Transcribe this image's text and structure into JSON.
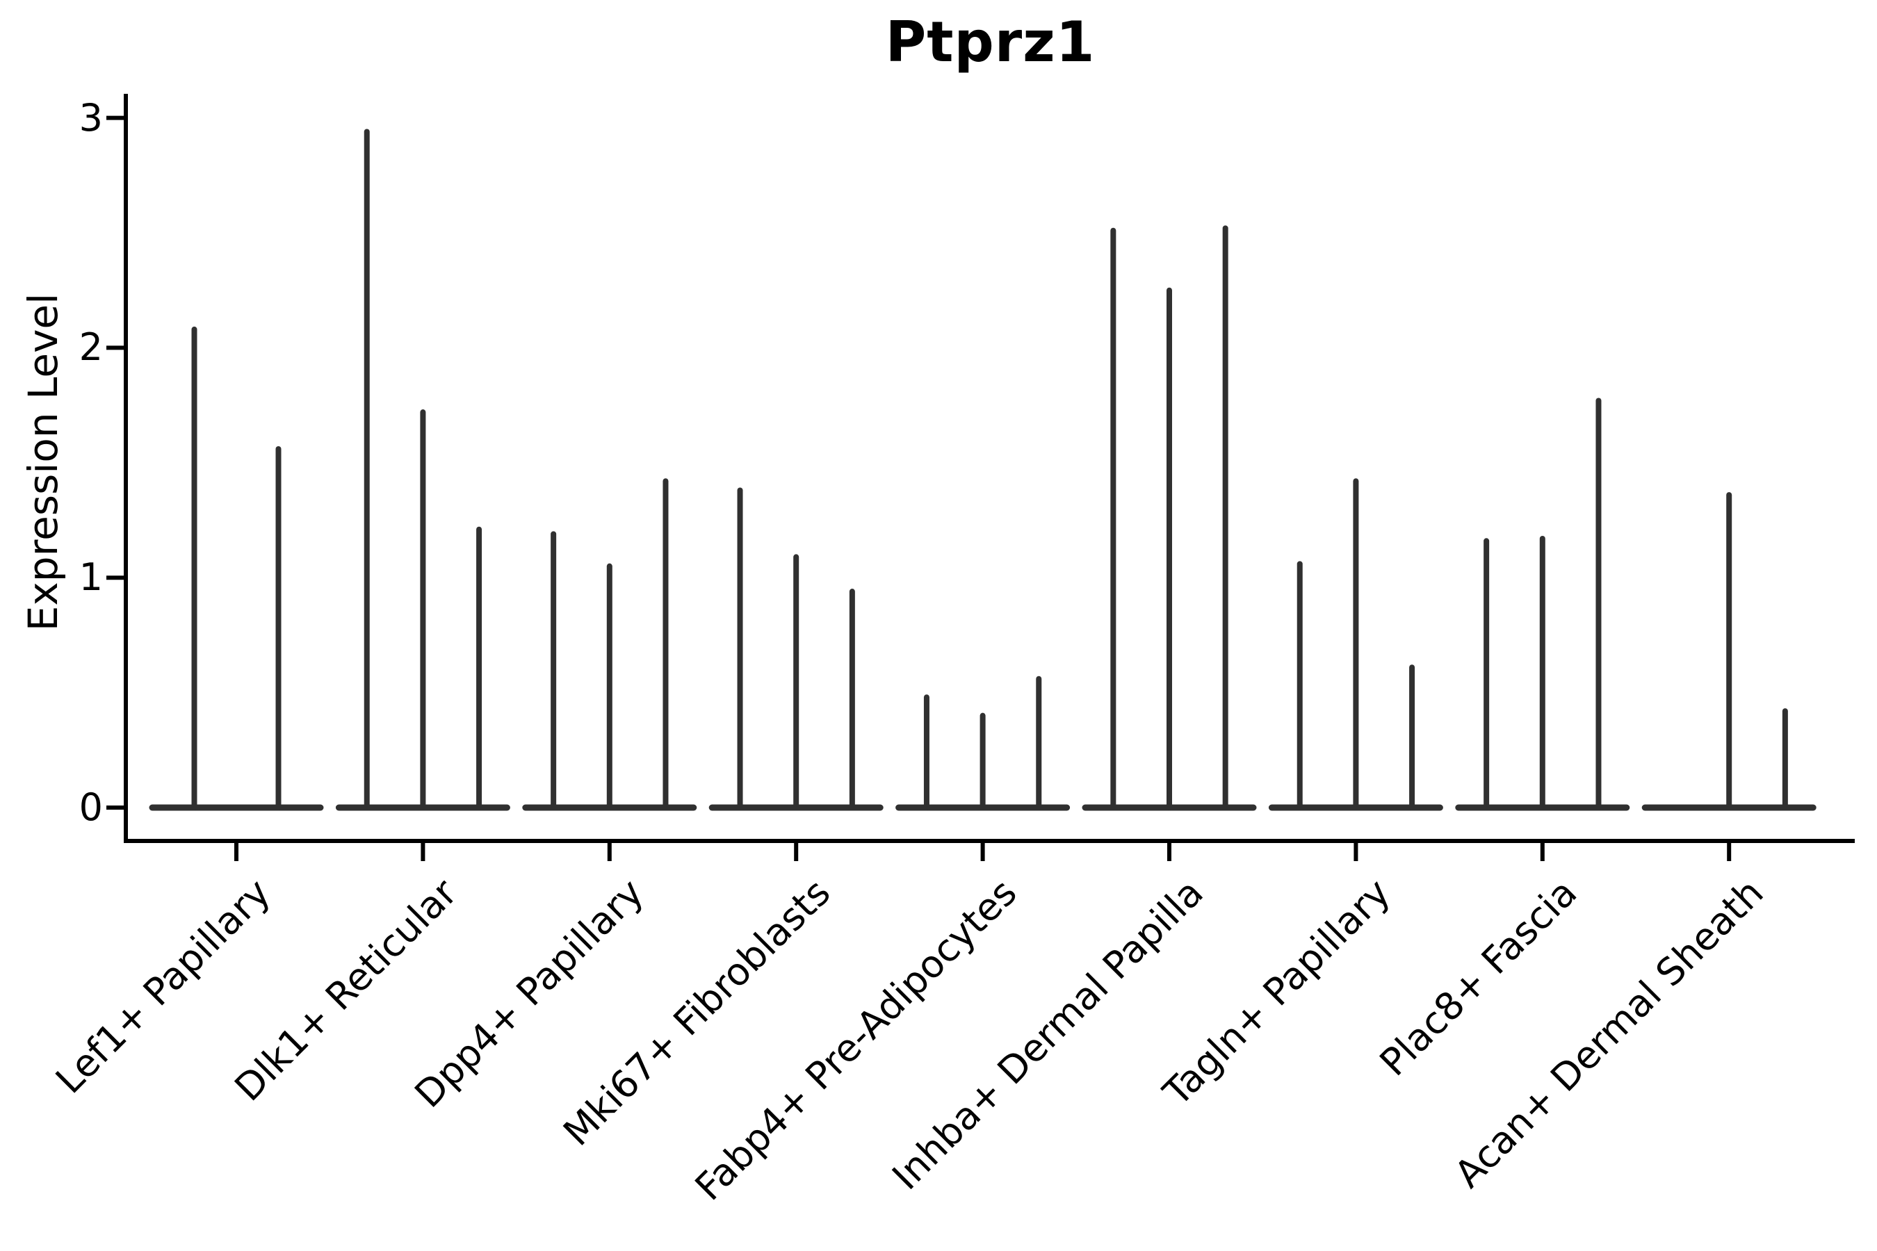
{
  "chart_data": {
    "type": "violin",
    "title": "Ptprz1",
    "xlabel": "",
    "ylabel": "Expression Level",
    "ylim": [
      0,
      3
    ],
    "yticks": [
      0,
      1,
      2,
      3
    ],
    "grid": false,
    "legend": null,
    "violin_shape_note": "each violin collapses to a thin vertical spike with a wide flat base at expression 0",
    "violin_min": 0,
    "categories": [
      "Lef1+ Papillary",
      "Dlk1+ Reticular",
      "Dpp4+ Papillary",
      "Mki67+ Fibroblasts",
      "Fabp4+ Pre-Adipocytes",
      "Inhba+ Dermal Papilla",
      "Tagln+ Papillary",
      "Plac8+ Fascia",
      "Acan+ Dermal Sheath"
    ],
    "groups": [
      {
        "category": "Lef1+ Papillary",
        "violin_max": [
          2.08,
          1.56
        ]
      },
      {
        "category": "Dlk1+ Reticular",
        "violin_max": [
          2.94,
          1.72,
          1.21
        ]
      },
      {
        "category": "Dpp4+ Papillary",
        "violin_max": [
          1.19,
          1.05,
          1.42
        ]
      },
      {
        "category": "Mki67+ Fibroblasts",
        "violin_max": [
          1.38,
          1.09,
          0.94
        ]
      },
      {
        "category": "Fabp4+ Pre-Adipocytes",
        "violin_max": [
          0.48,
          0.4,
          0.56
        ]
      },
      {
        "category": "Inhba+ Dermal Papilla",
        "violin_max": [
          2.51,
          2.25,
          2.52
        ]
      },
      {
        "category": "Tagln+ Papillary",
        "violin_max": [
          1.06,
          1.42,
          0.61
        ]
      },
      {
        "category": "Plac8+ Fascia",
        "violin_max": [
          1.16,
          1.17,
          1.77
        ]
      },
      {
        "category": "Acan+ Dermal Sheath",
        "violin_max": [
          0.0,
          1.36,
          0.42
        ]
      }
    ],
    "colors": {
      "violin_line": "#303030",
      "axis": "#000000",
      "text": "#000000",
      "background": "#ffffff"
    }
  }
}
